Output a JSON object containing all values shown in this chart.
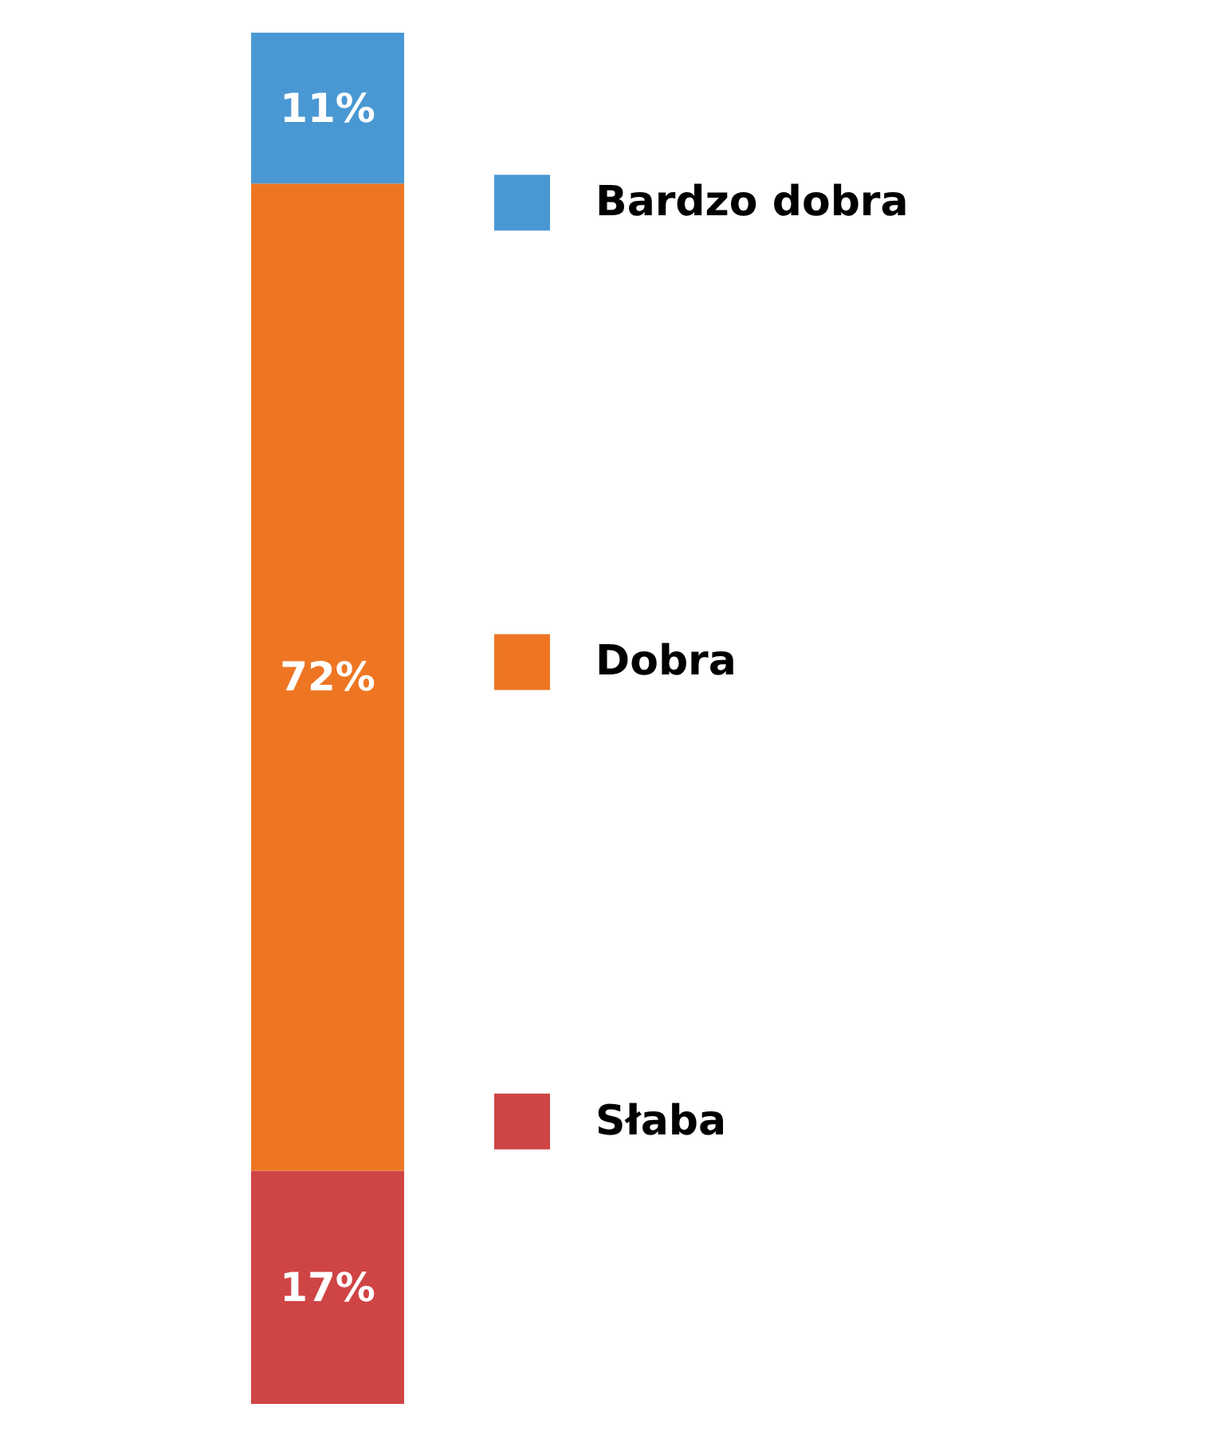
{
  "chart_data": {
    "type": "bar",
    "stacked": true,
    "categories": [
      null
    ],
    "legend": "right",
    "series": [
      {
        "name": "Słaba",
        "color": "#cf4444",
        "values": [
          17
        ],
        "value_labels": [
          "17%"
        ]
      },
      {
        "name": "Dobra",
        "color": "#ee7623",
        "values": [
          72
        ],
        "value_labels": [
          "72%"
        ]
      },
      {
        "name": "Bardzo dobra",
        "color": "#4a98d3",
        "values": [
          11
        ],
        "value_labels": [
          "11%"
        ]
      }
    ]
  }
}
